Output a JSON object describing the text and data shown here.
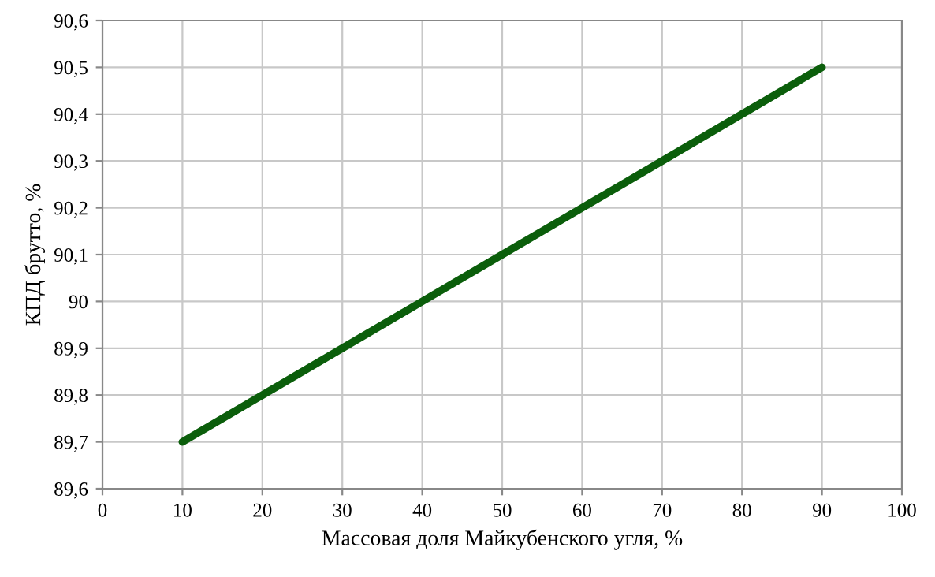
{
  "chart_data": {
    "type": "line",
    "xlabel": "Массовая доля Майкубенского угля, %",
    "ylabel": "КПД брутто, %",
    "x": [
      10,
      20,
      30,
      40,
      50,
      60,
      70,
      80,
      90
    ],
    "series": [
      {
        "color": "#0b5e0b",
        "values": [
          89.7,
          89.8,
          89.9,
          90.0,
          90.1,
          90.2,
          90.3,
          90.4,
          90.5
        ]
      }
    ],
    "xlim": [
      0,
      100
    ],
    "xticks": [
      0,
      10,
      20,
      30,
      40,
      50,
      60,
      70,
      80,
      90,
      100
    ],
    "ylim": [
      89.6,
      90.6
    ],
    "yticks": [
      {
        "value": 89.6,
        "label": "89,6"
      },
      {
        "value": 89.7,
        "label": "89,7"
      },
      {
        "value": 89.8,
        "label": "89,8"
      },
      {
        "value": 89.9,
        "label": "89,9"
      },
      {
        "value": 90,
        "label": "90"
      },
      {
        "value": 90.1,
        "label": "90,1"
      },
      {
        "value": 90.2,
        "label": "90,2"
      },
      {
        "value": 90.3,
        "label": "90,3"
      },
      {
        "value": 90.4,
        "label": "90,4"
      },
      {
        "value": 90.5,
        "label": "90,5"
      },
      {
        "value": 90.6,
        "label": "90,6"
      }
    ],
    "grid": true,
    "marker": "none",
    "line_style": "solid"
  }
}
